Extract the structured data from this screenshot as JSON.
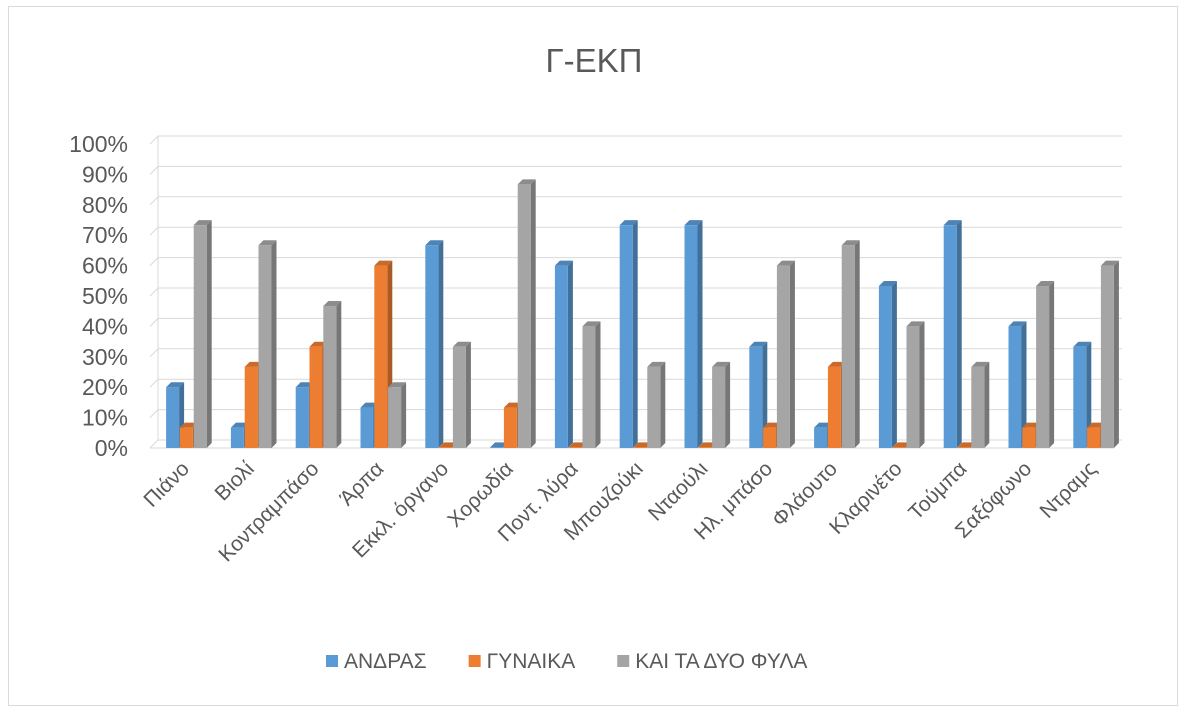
{
  "chart_data": {
    "type": "bar",
    "title": "Γ-ΕΚΠ",
    "xlabel": "",
    "ylabel": "",
    "ylim": [
      0,
      1
    ],
    "yticks": [
      "0%",
      "10%",
      "20%",
      "30%",
      "40%",
      "50%",
      "60%",
      "70%",
      "80%",
      "90%",
      "100%"
    ],
    "grid": true,
    "legend_position": "bottom",
    "categories": [
      "Πιάνο",
      "Βιολί",
      "Κοντραμπάσο",
      "Άρπα",
      "Εκκλ. όργανο",
      "Χορωδία",
      "Ποντ. λύρα",
      "Μπουζούκι",
      "Νταούλι",
      "Ηλ. μπάσο",
      "Φλάουτο",
      "Κλαρινέτο",
      "Τούμπα",
      "Σαξόφωνο",
      "Ντραμς"
    ],
    "series": [
      {
        "name": "ΑΝΔΡΑΣ",
        "color": "#5b9bd5",
        "values": [
          0.2,
          0.067,
          0.2,
          0.133,
          0.667,
          0.0,
          0.6,
          0.733,
          0.733,
          0.333,
          0.067,
          0.533,
          0.733,
          0.4,
          0.333
        ]
      },
      {
        "name": "ΓΥΝΑΙΚΑ",
        "color": "#ed7d31",
        "values": [
          0.067,
          0.267,
          0.333,
          0.6,
          0.0,
          0.133,
          0.0,
          0.0,
          0.0,
          0.067,
          0.267,
          0.0,
          0.0,
          0.067,
          0.067
        ]
      },
      {
        "name": "ΚΑΙ ΤΑ ΔΥΟ ΦΥΛΑ",
        "color": "#a5a5a5",
        "values": [
          0.733,
          0.667,
          0.467,
          0.2,
          0.333,
          0.867,
          0.4,
          0.267,
          0.267,
          0.6,
          0.667,
          0.4,
          0.267,
          0.533,
          0.6
        ]
      }
    ]
  }
}
